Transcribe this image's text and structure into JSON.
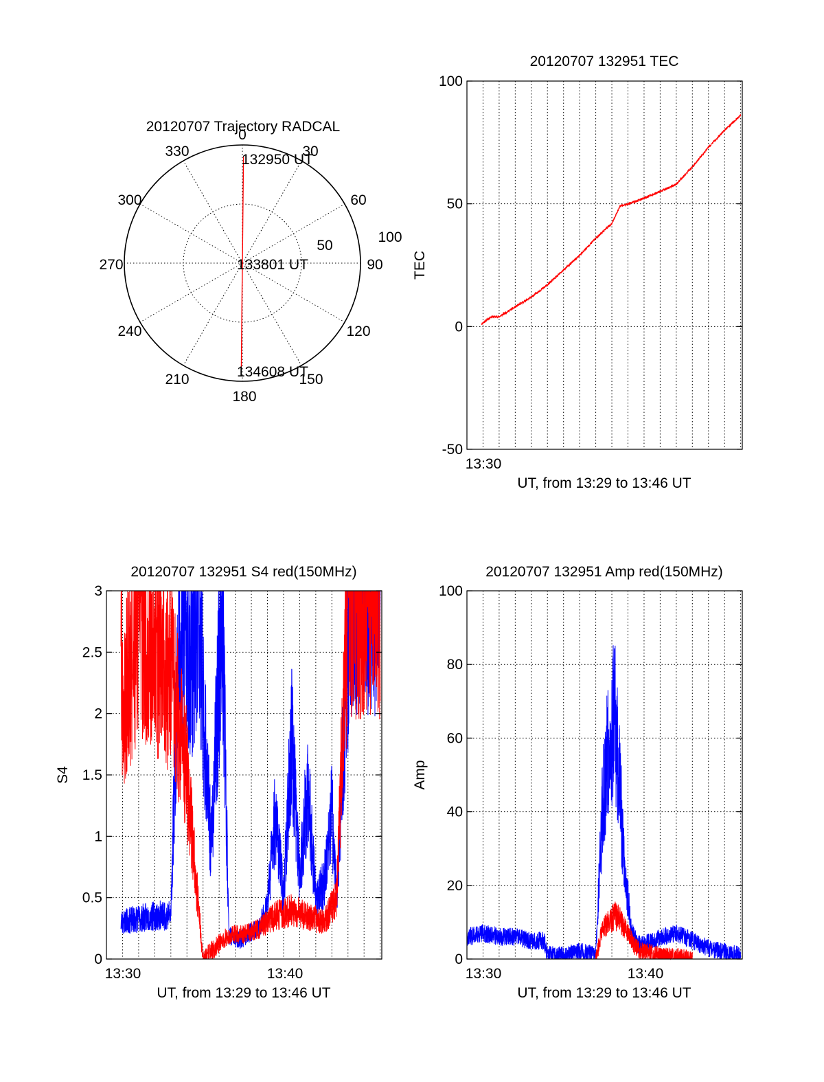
{
  "chart_data": [
    {
      "type": "polar",
      "title": "20120707 Trajectory RADCAL",
      "azimuth_labels": [
        "0",
        "30",
        "60",
        "90",
        "120",
        "150",
        "180",
        "210",
        "240",
        "270",
        "300",
        "330"
      ],
      "radial_ticks": [
        50,
        100
      ],
      "radial_max": 100,
      "trajectory": {
        "color": "#ff0000",
        "points": [
          {
            "az": 0.6,
            "r": 90
          },
          {
            "az": 0.6,
            "r": 40
          },
          {
            "az": 0.6,
            "r": 3
          },
          {
            "az": 180.6,
            "r": 20
          },
          {
            "az": 180.6,
            "r": 90
          }
        ]
      },
      "annotations": [
        "132950 UT",
        "133801 UT",
        "134608 UT"
      ]
    },
    {
      "type": "line",
      "title": "20120707 132951 TEC",
      "ylabel": "TEC",
      "xlabel": "UT, from 13:29 to 13:46 UT",
      "ylim": [
        -50,
        100
      ],
      "yticks": [
        "-50",
        "0",
        "50",
        "100"
      ],
      "xlim_min": [
        0,
        17.1
      ],
      "xtick_labels": [
        "13:30"
      ],
      "series": [
        {
          "color": "#ff0000",
          "x_min_since_1329": [
            0.9,
            1.5,
            2.0,
            3.0,
            4.0,
            5.0,
            6.0,
            7.0,
            8.0,
            9.0,
            9.5,
            10.5,
            12.0,
            13.0,
            14.0,
            15.0,
            16.0,
            17.0
          ],
          "y": [
            1,
            4,
            4,
            8,
            12,
            17,
            23,
            29,
            36,
            42,
            49,
            51,
            55,
            58,
            65,
            73,
            80,
            86
          ]
        }
      ]
    },
    {
      "type": "line",
      "title": "20120707 132951 S4 red(150MHz)",
      "ylabel": "S4",
      "xlabel": "UT, from 13:29 to 13:46 UT",
      "ylim": [
        0,
        3
      ],
      "yticks": [
        "0",
        "0.5",
        "1",
        "1.5",
        "2",
        "2.5",
        "3"
      ],
      "xlim_min": [
        0,
        17.1
      ],
      "xtick_labels": [
        "13:30",
        "13:40"
      ],
      "series": [
        {
          "color": "#0000ff",
          "x_min_since_1329": [
            0.9,
            2.0,
            3.0,
            4.0,
            4.5,
            5.2,
            5.8,
            6.5,
            7.2,
            7.6,
            8.2,
            9.0,
            9.5,
            10.0,
            10.5,
            11.0,
            11.5,
            12.0,
            12.5,
            13.0,
            13.5,
            14.0,
            14.3,
            14.8,
            15.2,
            16.0,
            17.0
          ],
          "y": [
            0.3,
            0.33,
            0.35,
            0.36,
            2.8,
            2.5,
            2.6,
            0.9,
            2.9,
            0.2,
            0.15,
            0.22,
            0.25,
            0.45,
            1.2,
            0.5,
            1.8,
            0.7,
            1.4,
            0.5,
            0.6,
            1.2,
            0.5,
            2.0,
            3.0,
            3.0,
            3.0
          ]
        },
        {
          "color": "#ff0000",
          "x_min_since_1329": [
            0.9,
            1.0,
            2.0,
            3.0,
            4.0,
            5.0,
            6.0,
            7.6,
            8.5,
            9.5,
            10.5,
            11.5,
            12.5,
            13.5,
            14.3,
            15.0,
            16.0,
            17.0
          ],
          "y": [
            3.0,
            2.0,
            2.8,
            2.5,
            2.3,
            1.5,
            0.0,
            0.2,
            0.2,
            0.25,
            0.35,
            0.4,
            0.35,
            0.3,
            0.5,
            3.0,
            3.0,
            3.0
          ]
        }
      ]
    },
    {
      "type": "line",
      "title": "20120707 132951 Amp red(150MHz)",
      "ylabel": "Amp",
      "xlabel": "UT, from 13:29 to 13:46 UT",
      "ylim": [
        0,
        100
      ],
      "yticks": [
        "0",
        "20",
        "40",
        "60",
        "80",
        "100"
      ],
      "xlim_min": [
        0,
        17.1
      ],
      "xtick_labels": [
        "13:30",
        "13:40"
      ],
      "series": [
        {
          "color": "#0000ff",
          "x_min_since_1329": [
            0.0,
            1.0,
            2.0,
            3.0,
            4.0,
            4.8,
            5.0,
            6.0,
            7.0,
            8.0,
            8.4,
            8.8,
            9.2,
            9.5,
            9.8,
            10.2,
            10.6,
            11.0,
            12.0,
            13.0,
            14.0,
            15.0,
            16.0,
            17.0
          ],
          "y": [
            6,
            7,
            6,
            6,
            5,
            5,
            1,
            1,
            2,
            1,
            40,
            60,
            65,
            45,
            25,
            8,
            4,
            4,
            6,
            7,
            5,
            3,
            2,
            1
          ]
        },
        {
          "color": "#ff0000",
          "x_min_since_1329": [
            8.0,
            8.4,
            8.8,
            9.2,
            9.6,
            10.0,
            10.5,
            11.0,
            12.0,
            14.0
          ],
          "y": [
            0,
            8,
            10,
            12,
            10,
            7,
            3,
            2,
            1,
            0
          ]
        }
      ]
    }
  ]
}
